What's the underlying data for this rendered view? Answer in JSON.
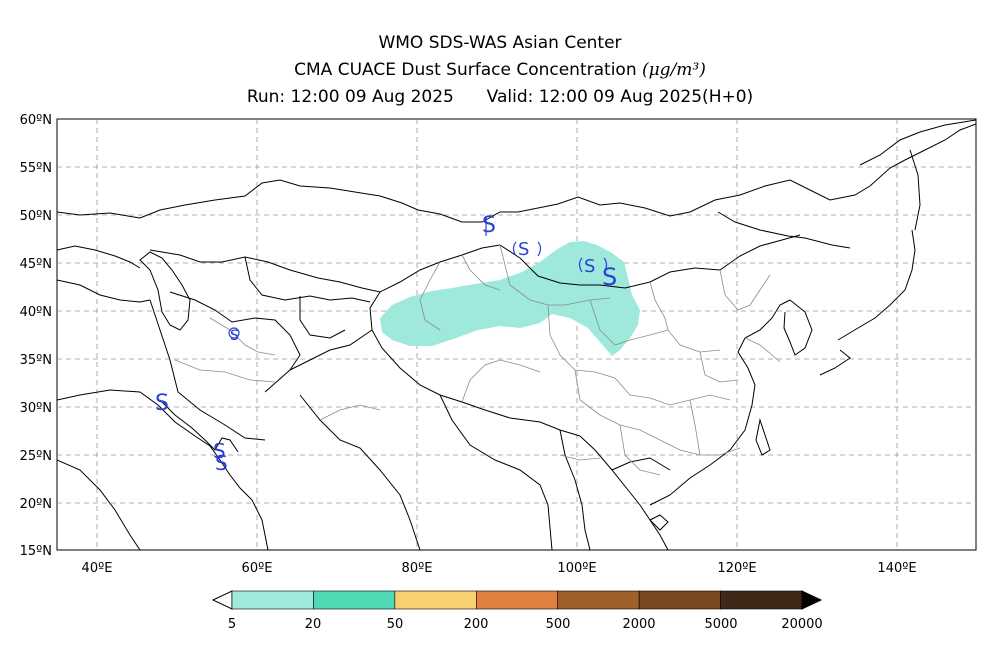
{
  "titles": {
    "line1": "WMO SDS-WAS Asian Center",
    "line2_text": "CMA CUACE Dust Surface Concentration",
    "line2_unit": "(μg/m³)",
    "run_label": "Run: 12:00 09 Aug 2025",
    "valid_label": "Valid: 12:00 09 Aug 2025(H+0)"
  },
  "axes": {
    "lat_labels": [
      "60ºN",
      "55ºN",
      "50ºN",
      "45ºN",
      "40ºN",
      "35ºN",
      "30ºN",
      "25ºN",
      "20ºN",
      "15ºN"
    ],
    "lon_labels": [
      "40ºE",
      "60ºE",
      "80ºE",
      "100ºE",
      "120ºE",
      "140ºE"
    ],
    "lon_range": [
      35,
      150
    ],
    "lat_range": [
      15,
      60
    ]
  },
  "colorbar": {
    "labels": [
      "5",
      "20",
      "50",
      "200",
      "500",
      "2000",
      "5000",
      "20000"
    ],
    "colors": [
      "#9ee8dc",
      "#4ed8b4",
      "#f8d070",
      "#e08040",
      "#a06028",
      "#784820",
      "#402818"
    ]
  },
  "map": {
    "dust_fill_color": "#9ee8dc",
    "symbol_color": "#2a3fd6",
    "station_symbol": "S"
  }
}
